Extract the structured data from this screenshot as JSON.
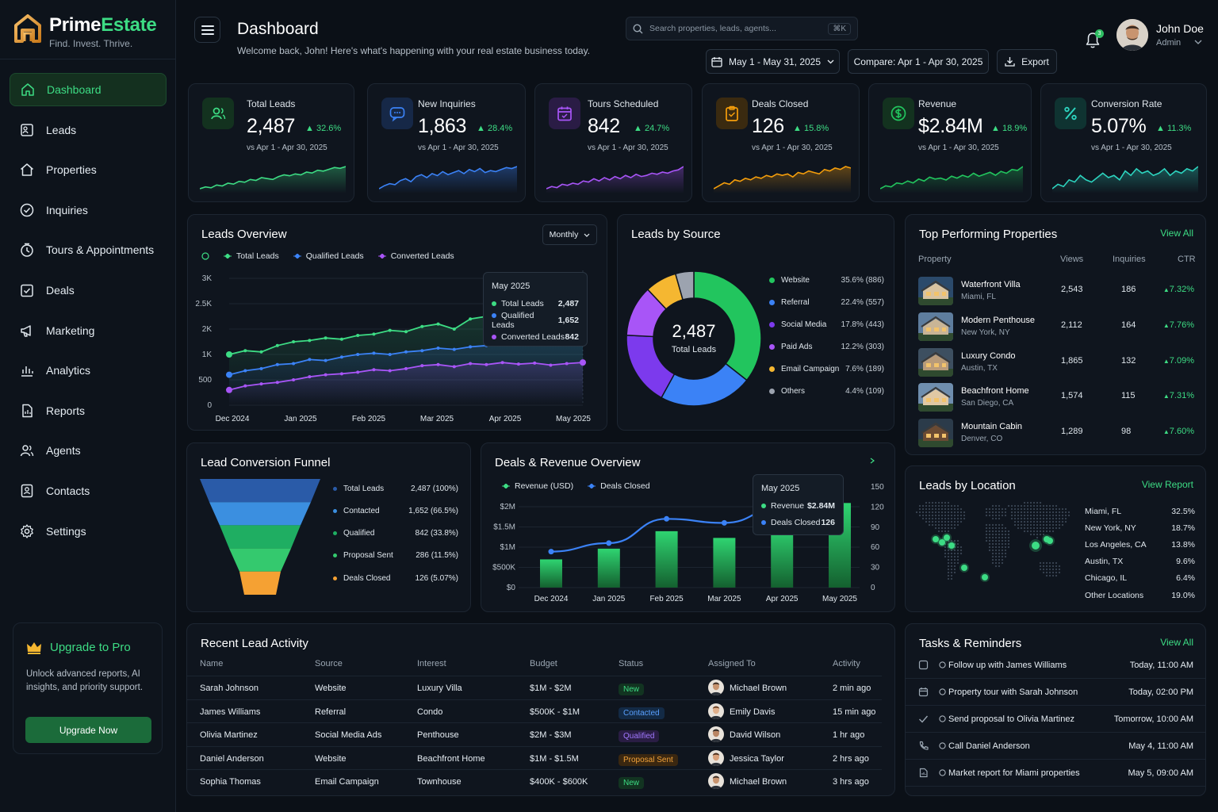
{
  "brand": {
    "name_a": "Prime",
    "name_b": "Estate",
    "tagline": "Find. Invest. Thrive."
  },
  "nav": [
    {
      "label": "Dashboard",
      "icon": "home-icon",
      "active": true
    },
    {
      "label": "Leads",
      "icon": "leads-icon"
    },
    {
      "label": "Properties",
      "icon": "house-icon"
    },
    {
      "label": "Inquiries",
      "icon": "check-circle-icon"
    },
    {
      "label": "Tours & Appointments",
      "icon": "clock-icon"
    },
    {
      "label": "Deals",
      "icon": "deals-icon"
    },
    {
      "label": "Marketing",
      "icon": "megaphone-icon"
    },
    {
      "label": "Analytics",
      "icon": "analytics-icon"
    },
    {
      "label": "Reports",
      "icon": "report-icon"
    },
    {
      "label": "Agents",
      "icon": "agents-icon"
    },
    {
      "label": "Contacts",
      "icon": "contacts-icon"
    },
    {
      "label": "Settings",
      "icon": "gear-icon"
    }
  ],
  "upgrade": {
    "title": "Upgrade to Pro",
    "text": "Unlock advanced reports, AI insights, and priority support.",
    "button": "Upgrade Now"
  },
  "header": {
    "title": "Dashboard",
    "welcome": "Welcome back, John! Here's what's happening with your real estate business today.",
    "search_placeholder": "Search properties, leads, agents...",
    "search_shortcut": "⌘K",
    "date_range": "May 1 - May 31, 2025",
    "compare": "Compare: Apr 1 - Apr 30, 2025",
    "export": "Export",
    "notif_count": "3",
    "user_name": "John Doe",
    "user_role": "Admin"
  },
  "kpis": [
    {
      "label": "Total Leads",
      "value": "2,487",
      "change": "32.6%",
      "compare": "vs Apr 1 - Apr 30, 2025",
      "color": "#3ddc84",
      "icon": "users-icon",
      "spark": [
        12,
        14,
        13,
        16,
        15,
        18,
        17,
        20,
        19,
        22,
        21,
        24,
        23,
        22,
        25,
        27,
        26,
        28,
        27,
        30,
        29,
        32,
        31,
        33,
        35,
        34,
        36
      ]
    },
    {
      "label": "New Inquiries",
      "value": "1,863",
      "change": "28.4%",
      "compare": "vs Apr 1 - Apr 30, 2025",
      "color": "#3b82f6",
      "icon": "chat-icon",
      "spark": [
        10,
        13,
        15,
        14,
        18,
        20,
        17,
        22,
        24,
        21,
        25,
        23,
        27,
        24,
        26,
        28,
        25,
        29,
        27,
        30,
        26,
        28,
        27,
        29,
        31,
        30,
        32
      ]
    },
    {
      "label": "Tours Scheduled",
      "value": "842",
      "change": "24.7%",
      "compare": "vs Apr 1 - Apr 30, 2025",
      "color": "#a855f7",
      "icon": "calendar-icon",
      "spark": [
        12,
        14,
        13,
        16,
        15,
        17,
        16,
        19,
        18,
        21,
        19,
        22,
        20,
        23,
        21,
        24,
        22,
        25,
        23,
        24,
        26,
        25,
        27,
        26,
        28,
        29,
        32
      ]
    },
    {
      "label": "Deals Closed",
      "value": "126",
      "change": "15.8%",
      "compare": "vs Apr 1 - Apr 30, 2025",
      "color": "#f59e0b",
      "icon": "clipboard-icon",
      "spark": [
        12,
        14,
        16,
        15,
        18,
        17,
        19,
        18,
        20,
        19,
        21,
        20,
        22,
        21,
        22,
        20,
        23,
        22,
        24,
        23,
        22,
        25,
        24,
        26,
        25,
        27,
        26
      ]
    },
    {
      "label": "Revenue",
      "value": "$2.84M",
      "change": "18.9%",
      "compare": "vs Apr 1 - Apr 30, 2025",
      "color": "#22c55e",
      "icon": "dollar-icon",
      "spark": [
        10,
        13,
        12,
        16,
        15,
        18,
        16,
        20,
        18,
        22,
        20,
        21,
        19,
        23,
        21,
        24,
        22,
        26,
        23,
        25,
        27,
        24,
        28,
        26,
        30,
        29,
        33
      ]
    },
    {
      "label": "Conversion Rate",
      "value": "5.07%",
      "change": "11.3%",
      "compare": "vs Apr 1 - Apr 30, 2025",
      "color": "#2dd4bf",
      "icon": "percent-icon",
      "spark": [
        16,
        18,
        17,
        20,
        19,
        22,
        20,
        19,
        21,
        23,
        21,
        22,
        20,
        24,
        22,
        25,
        23,
        24,
        22,
        23,
        25,
        22,
        24,
        23,
        25,
        24,
        26
      ]
    }
  ],
  "leads_overview": {
    "title": "Leads Overview",
    "period": "Monthly",
    "chart_data": {
      "type": "line",
      "x_ticks": [
        "Dec 2024",
        "Jan 2025",
        "Feb 2025",
        "Mar 2025",
        "Apr 2025",
        "May 2025"
      ],
      "y_ticks": [
        "3K",
        "2.5K",
        "2K",
        "1K",
        "500",
        "0"
      ],
      "series": [
        {
          "name": "Total Leads",
          "color": "#3ddc84",
          "values": [
            1000,
            1150,
            1100,
            1350,
            1500,
            1550,
            1650,
            1600,
            1750,
            1800,
            1950,
            1900,
            2050,
            2100,
            2000,
            2200,
            2250,
            2350,
            2450,
            2400,
            2480,
            2450,
            2487
          ]
        },
        {
          "name": "Qualified Leads",
          "color": "#3b82f6",
          "values": [
            600,
            680,
            720,
            800,
            820,
            900,
            880,
            950,
            1000,
            1050,
            1000,
            1100,
            1150,
            1250,
            1200,
            1300,
            1350,
            1400,
            1450,
            1500,
            1550,
            1600,
            1652
          ]
        },
        {
          "name": "Converted Leads",
          "color": "#a855f7",
          "values": [
            300,
            380,
            420,
            450,
            500,
            560,
            600,
            620,
            650,
            700,
            680,
            720,
            780,
            800,
            760,
            820,
            800,
            840,
            810,
            830,
            790,
            820,
            842
          ]
        }
      ]
    },
    "tooltip": {
      "title": "May 2025",
      "rows": [
        {
          "label": "Total Leads",
          "value": "2,487"
        },
        {
          "label": "Qualified Leads",
          "value": "1,652"
        },
        {
          "label": "Converted Leads",
          "value": "842"
        }
      ]
    }
  },
  "leads_by_source": {
    "title": "Leads by Source",
    "center_value": "2,487",
    "center_label": "Total Leads",
    "chart_data": {
      "type": "pie",
      "slices": [
        {
          "name": "Website",
          "percent": 35.6,
          "label": "35.6% (886)",
          "color": "#22c55e"
        },
        {
          "name": "Referral",
          "percent": 22.4,
          "label": "22.4% (557)",
          "color": "#3b82f6"
        },
        {
          "name": "Social Media",
          "percent": 17.8,
          "label": "17.8% (443)",
          "color": "#7c3aed"
        },
        {
          "name": "Paid Ads",
          "percent": 12.2,
          "label": "12.2% (303)",
          "color": "#a855f7"
        },
        {
          "name": "Email Campaign",
          "percent": 7.6,
          "label": "7.6% (189)",
          "color": "#f5b731"
        },
        {
          "name": "Others",
          "percent": 4.4,
          "label": "4.4% (109)",
          "color": "#9ca3af"
        }
      ]
    }
  },
  "top_properties": {
    "title": "Top Performing Properties",
    "view_all": "View All",
    "headers": [
      "Property",
      "Views",
      "Inquiries",
      "CTR"
    ],
    "rows": [
      {
        "name": "Waterfront Villa",
        "location": "Miami, FL",
        "views": "2,543",
        "inquiries": "186",
        "ctr": "7.32%"
      },
      {
        "name": "Modern Penthouse",
        "location": "New York, NY",
        "views": "2,112",
        "inquiries": "164",
        "ctr": "7.76%"
      },
      {
        "name": "Luxury Condo",
        "location": "Austin, TX",
        "views": "1,865",
        "inquiries": "132",
        "ctr": "7.09%"
      },
      {
        "name": "Beachfront Home",
        "location": "San Diego, CA",
        "views": "1,574",
        "inquiries": "115",
        "ctr": "7.31%"
      },
      {
        "name": "Mountain Cabin",
        "location": "Denver, CO",
        "views": "1,289",
        "inquiries": "98",
        "ctr": "7.60%"
      }
    ]
  },
  "funnel": {
    "title": "Lead Conversion Funnel",
    "stages": [
      {
        "label": "Total Leads",
        "value": "2,487 (100%)",
        "color": "#2a5ba8"
      },
      {
        "label": "Contacted",
        "value": "1,652 (66.5%)",
        "color": "#3b8fe0"
      },
      {
        "label": "Qualified",
        "value": "842 (33.8%)",
        "color": "#1fae62"
      },
      {
        "label": "Proposal Sent",
        "value": "286 (11.5%)",
        "color": "#34c96e"
      },
      {
        "label": "Deals Closed",
        "value": "126 (5.07%)",
        "color": "#f5a133"
      }
    ]
  },
  "deals_revenue": {
    "title": "Deals & Revenue Overview",
    "legend": [
      "Revenue (USD)",
      "Deals Closed"
    ],
    "chart_data": {
      "type": "bar",
      "categories": [
        "Dec 2024",
        "Jan 2025",
        "Feb 2025",
        "Mar 2025",
        "Apr 2025",
        "May 2025"
      ],
      "y_left_ticks": [
        "$2M",
        "$1.5M",
        "$1M",
        "$500K",
        "$0"
      ],
      "y_right_ticks": [
        "150",
        "120",
        "90",
        "60",
        "30",
        "0"
      ],
      "series": [
        {
          "name": "Deals Closed",
          "values": [
            42,
            58,
            84,
            74,
            92,
            126
          ]
        },
        {
          "name": "Revenue (USD)",
          "values": [
            890000,
            1100000,
            1700000,
            1600000,
            2000000,
            2840000
          ]
        }
      ]
    },
    "tooltip": {
      "title": "May 2025",
      "rows": [
        {
          "label": "Revenue",
          "value": "$2.84M"
        },
        {
          "label": "Deals Closed",
          "value": "126"
        }
      ]
    }
  },
  "leads_by_location": {
    "title": "Leads by Location",
    "view_report": "View Report",
    "rows": [
      {
        "label": "Miami, FL",
        "value": "32.5%"
      },
      {
        "label": "New York, NY",
        "value": "18.7%"
      },
      {
        "label": "Los Angeles, CA",
        "value": "13.8%"
      },
      {
        "label": "Austin, TX",
        "value": "9.6%"
      },
      {
        "label": "Chicago, IL",
        "value": "6.4%"
      },
      {
        "label": "Other Locations",
        "value": "19.0%"
      }
    ]
  },
  "recent_activity": {
    "title": "Recent Lead Activity",
    "headers": [
      "Name",
      "Source",
      "Interest",
      "Budget",
      "Status",
      "Assigned To",
      "Activity"
    ],
    "rows": [
      {
        "name": "Sarah Johnson",
        "source": "Website",
        "interest": "Luxury Villa",
        "budget": "$1M - $2M",
        "status": "New",
        "agent": "Michael Brown",
        "activity": "2 min ago"
      },
      {
        "name": "James Williams",
        "source": "Referral",
        "interest": "Condo",
        "budget": "$500K - $1M",
        "status": "Contacted",
        "agent": "Emily Davis",
        "activity": "15 min ago"
      },
      {
        "name": "Olivia Martinez",
        "source": "Social Media Ads",
        "interest": "Penthouse",
        "budget": "$2M - $3M",
        "status": "Qualified",
        "agent": "David Wilson",
        "activity": "1 hr ago"
      },
      {
        "name": "Daniel Anderson",
        "source": "Website",
        "interest": "Beachfront Home",
        "budget": "$1M - $1.5M",
        "status": "Proposal Sent",
        "agent": "Jessica Taylor",
        "activity": "2 hrs ago"
      },
      {
        "name": "Sophia Thomas",
        "source": "Email Campaign",
        "interest": "Townhouse",
        "budget": "$400K - $600K",
        "status": "New",
        "agent": "Michael Brown",
        "activity": "3 hrs ago"
      }
    ]
  },
  "tasks": {
    "title": "Tasks & Reminders",
    "view_all": "View All",
    "rows": [
      {
        "label": "Follow up with James Williams",
        "time": "Today, 11:00 AM",
        "icon": "checkbox-icon"
      },
      {
        "label": "Property tour with Sarah Johnson",
        "time": "Today, 02:00 PM",
        "icon": "calendar-icon"
      },
      {
        "label": "Send proposal to Olivia Martinez",
        "time": "Tomorrow, 10:00 AM",
        "icon": "check-icon"
      },
      {
        "label": "Call Daniel Anderson",
        "time": "May 4, 11:00 AM",
        "icon": "phone-icon"
      },
      {
        "label": "Market report for Miami properties",
        "time": "May 5, 09:00 AM",
        "icon": "report-icon"
      }
    ]
  }
}
